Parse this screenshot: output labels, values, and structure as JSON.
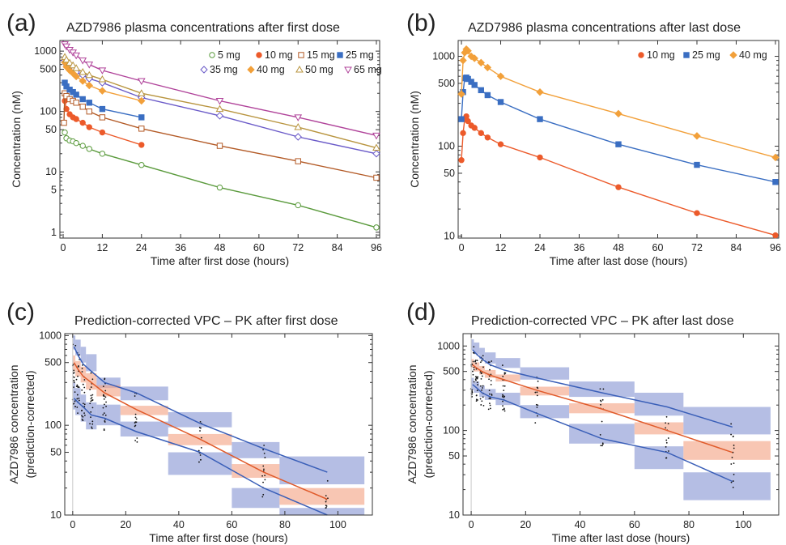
{
  "chart_data": [
    {
      "panel": "(a)",
      "type": "line",
      "title": "AZD7986 plasma concentrations after first dose",
      "xlabel": "Time after first dose (hours)",
      "ylabel": "Concentration (nM)",
      "yscale": "log",
      "xlim": [
        -1,
        97
      ],
      "ylim": [
        0.8,
        1500
      ],
      "xticks": [
        0,
        12,
        24,
        36,
        48,
        60,
        72,
        84,
        96
      ],
      "yticks": [
        1,
        5,
        10,
        50,
        100,
        500,
        1000
      ],
      "legend": "top-right",
      "series": [
        {
          "name": "5 mg",
          "color": "#5a9a3c",
          "marker": "circle-open",
          "x": [
            0.5,
            1,
            2,
            3,
            4,
            6,
            8,
            12,
            24,
            48,
            72,
            96
          ],
          "y": [
            45,
            36,
            33,
            32,
            30,
            27,
            24,
            20,
            13,
            5.5,
            2.8,
            1.2
          ]
        },
        {
          "name": "10 mg",
          "color": "#ec5a2a",
          "marker": "circle-filled",
          "x": [
            0.5,
            1,
            2,
            3,
            4,
            6,
            8,
            12,
            24
          ],
          "y": [
            150,
            110,
            90,
            80,
            75,
            65,
            55,
            45,
            28
          ]
        },
        {
          "name": "15 mg",
          "color": "#b35a26",
          "marker": "square-open",
          "x": [
            0.25,
            0.5,
            1,
            2,
            3,
            4,
            6,
            8,
            12,
            24,
            48,
            72,
            96
          ],
          "y": [
            65,
            200,
            180,
            160,
            150,
            140,
            120,
            100,
            80,
            52,
            27,
            15,
            8
          ]
        },
        {
          "name": "25 mg",
          "color": "#3a6ec2",
          "marker": "square-filled",
          "x": [
            0.5,
            1,
            2,
            3,
            4,
            6,
            8,
            12,
            24
          ],
          "y": [
            300,
            260,
            230,
            210,
            190,
            160,
            140,
            110,
            80
          ]
        },
        {
          "name": "35 mg",
          "color": "#6a5ac8",
          "marker": "diamond-open",
          "x": [
            0.5,
            1,
            2,
            3,
            4,
            6,
            8,
            12,
            24,
            48,
            72,
            96
          ],
          "y": [
            700,
            600,
            520,
            480,
            450,
            400,
            350,
            300,
            170,
            85,
            38,
            20
          ]
        },
        {
          "name": "40 mg",
          "color": "#f2a03a",
          "marker": "diamond-filled",
          "x": [
            0.5,
            1,
            2,
            3,
            4,
            6,
            8,
            12,
            24
          ],
          "y": [
            650,
            550,
            480,
            430,
            380,
            320,
            270,
            220,
            150
          ]
        },
        {
          "name": "50 mg",
          "color": "#b8943e",
          "marker": "triangle-open",
          "x": [
            0.5,
            1,
            2,
            3,
            4,
            6,
            8,
            12,
            24,
            48,
            72,
            96
          ],
          "y": [
            800,
            720,
            640,
            580,
            520,
            450,
            400,
            340,
            200,
            110,
            55,
            25
          ]
        },
        {
          "name": "65 mg",
          "color": "#b0439a",
          "marker": "tri-down-open",
          "x": [
            0.5,
            1,
            2,
            3,
            4,
            6,
            8,
            12,
            24,
            48,
            72,
            96
          ],
          "y": [
            1300,
            1200,
            1050,
            950,
            850,
            700,
            600,
            480,
            320,
            150,
            80,
            40
          ]
        }
      ]
    },
    {
      "panel": "(b)",
      "type": "line",
      "title": "AZD7986 plasma concentrations after last dose",
      "xlabel": "Time after last dose (hours)",
      "ylabel": "Concentration (nM)",
      "yscale": "log",
      "xlim": [
        -1,
        97
      ],
      "ylim": [
        9.5,
        1500
      ],
      "xticks": [
        0,
        12,
        24,
        36,
        48,
        60,
        72,
        84,
        96
      ],
      "yticks": [
        10,
        50,
        100,
        500,
        1000
      ],
      "legend": "top-right",
      "series": [
        {
          "name": "10 mg",
          "color": "#ec5a2a",
          "marker": "circle-filled",
          "x": [
            0,
            0.5,
            1,
            1.5,
            2,
            3,
            4,
            6,
            8,
            12,
            24,
            48,
            72,
            96
          ],
          "y": [
            70,
            140,
            200,
            215,
            190,
            170,
            160,
            140,
            125,
            105,
            75,
            35,
            18,
            10.2
          ]
        },
        {
          "name": "25 mg",
          "color": "#3a6ec2",
          "marker": "square-filled",
          "x": [
            0,
            0.5,
            1,
            1.5,
            2,
            3,
            4,
            6,
            8,
            12,
            24,
            48,
            72,
            96
          ],
          "y": [
            200,
            400,
            570,
            580,
            560,
            520,
            480,
            420,
            370,
            310,
            200,
            105,
            62,
            40
          ]
        },
        {
          "name": "40 mg",
          "color": "#f2a03a",
          "marker": "diamond-filled",
          "x": [
            0,
            0.5,
            1,
            1.5,
            2,
            3,
            4,
            6,
            8,
            12,
            24,
            48,
            72,
            96
          ],
          "y": [
            380,
            900,
            1100,
            1200,
            1150,
            1000,
            950,
            850,
            750,
            600,
            400,
            230,
            130,
            75
          ]
        }
      ]
    },
    {
      "panel": "(c)",
      "type": "scatter",
      "title": "Prediction-corrected VPC – PK after first dose",
      "xlabel": "Time after first dose (hours)",
      "ylabel": "AZD7986 concentration\n(prediction-corrected)",
      "yscale": "log",
      "xlim": [
        -3,
        113
      ],
      "ylim": [
        10,
        1050
      ],
      "xticks": [
        0,
        20,
        40,
        60,
        80,
        100
      ],
      "yticks": [
        10,
        50,
        100,
        500,
        1000
      ],
      "bins": [
        {
          "x0": 0,
          "x1": 1,
          "p5": [
            150,
            300
          ],
          "p50": [
            400,
            600
          ],
          "p95": [
            700,
            1000
          ]
        },
        {
          "x0": 1,
          "x1": 3,
          "p5": [
            130,
            260
          ],
          "p50": [
            350,
            520
          ],
          "p95": [
            600,
            900
          ]
        },
        {
          "x0": 3,
          "x1": 5,
          "p5": [
            110,
            220
          ],
          "p50": [
            300,
            450
          ],
          "p95": [
            500,
            750
          ]
        },
        {
          "x0": 5,
          "x1": 9,
          "p5": [
            90,
            180
          ],
          "p50": [
            250,
            380
          ],
          "p95": [
            400,
            620
          ]
        },
        {
          "x0": 9,
          "x1": 18,
          "p5": [
            100,
            170
          ],
          "p50": [
            210,
            280
          ],
          "p95": [
            260,
            340
          ]
        },
        {
          "x0": 18,
          "x1": 36,
          "p5": [
            75,
            110
          ],
          "p50": [
            130,
            165
          ],
          "p95": [
            190,
            270
          ]
        },
        {
          "x0": 36,
          "x1": 60,
          "p5": [
            28,
            50
          ],
          "p50": [
            60,
            80
          ],
          "p95": [
            95,
            140
          ]
        },
        {
          "x0": 60,
          "x1": 78,
          "p5": [
            12,
            20
          ],
          "p50": [
            26,
            37
          ],
          "p95": [
            43,
            65
          ]
        },
        {
          "x0": 78,
          "x1": 110,
          "p5": [
            7,
            12
          ],
          "p50": [
            13,
            20
          ],
          "p95": [
            22,
            45
          ]
        }
      ],
      "observed_lines": {
        "x": [
          0.5,
          2,
          4,
          7,
          12,
          24,
          48,
          72,
          96
        ],
        "p5": [
          200,
          180,
          160,
          130,
          120,
          85,
          50,
          20,
          7
        ],
        "p50": [
          500,
          420,
          350,
          300,
          230,
          150,
          70,
          30,
          15
        ],
        "p95": [
          750,
          600,
          480,
          400,
          300,
          230,
          105,
          55,
          30
        ]
      }
    },
    {
      "panel": "(d)",
      "type": "scatter",
      "title": "Prediction-corrected VPC – PK after last dose",
      "xlabel": "Time after last dose (hours)",
      "ylabel": "AZD7986 concentration\n(prediction-corrected)",
      "yscale": "log",
      "xlim": [
        -3,
        113
      ],
      "ylim": [
        10,
        1400
      ],
      "xticks": [
        0,
        20,
        40,
        60,
        80,
        100
      ],
      "yticks": [
        10,
        50,
        100,
        500,
        1000
      ],
      "bins": [
        {
          "x0": 0,
          "x1": 1,
          "p5": [
            300,
            420
          ],
          "p50": [
            550,
            700
          ],
          "p95": [
            900,
            1200
          ]
        },
        {
          "x0": 1,
          "x1": 3,
          "p5": [
            280,
            380
          ],
          "p50": [
            500,
            640
          ],
          "p95": [
            800,
            1100
          ]
        },
        {
          "x0": 3,
          "x1": 5,
          "p5": [
            250,
            340
          ],
          "p50": [
            460,
            580
          ],
          "p95": [
            700,
            950
          ]
        },
        {
          "x0": 5,
          "x1": 9,
          "p5": [
            230,
            310
          ],
          "p50": [
            420,
            520
          ],
          "p95": [
            620,
            840
          ]
        },
        {
          "x0": 9,
          "x1": 18,
          "p5": [
            200,
            280
          ],
          "p50": [
            380,
            460
          ],
          "p95": [
            550,
            720
          ]
        },
        {
          "x0": 18,
          "x1": 36,
          "p5": [
            140,
            200
          ],
          "p50": [
            260,
            330
          ],
          "p95": [
            400,
            560
          ]
        },
        {
          "x0": 36,
          "x1": 60,
          "p5": [
            70,
            120
          ],
          "p50": [
            160,
            210
          ],
          "p95": [
            250,
            380
          ]
        },
        {
          "x0": 60,
          "x1": 78,
          "p5": [
            35,
            65
          ],
          "p50": [
            90,
            125
          ],
          "p95": [
            150,
            280
          ]
        },
        {
          "x0": 78,
          "x1": 110,
          "p5": [
            15,
            32
          ],
          "p50": [
            45,
            75
          ],
          "p95": [
            90,
            190
          ]
        }
      ],
      "observed_lines": {
        "x": [
          0.5,
          2,
          4,
          7,
          12,
          24,
          48,
          72,
          96
        ],
        "p5": [
          350,
          320,
          280,
          250,
          230,
          160,
          80,
          55,
          25
        ],
        "p50": [
          600,
          550,
          500,
          450,
          400,
          300,
          180,
          100,
          55
        ],
        "p95": [
          900,
          800,
          700,
          600,
          520,
          420,
          280,
          190,
          110
        ]
      }
    }
  ]
}
